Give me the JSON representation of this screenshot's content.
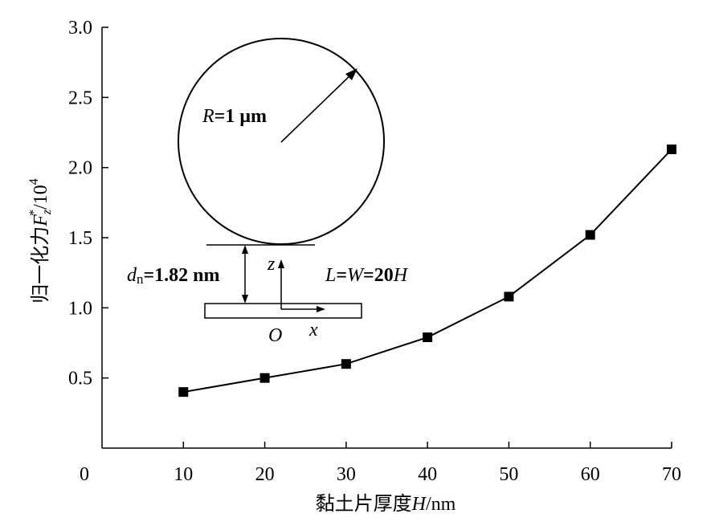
{
  "chart_data": {
    "type": "line",
    "title": "",
    "xlabel": "黏土片厚度H/nm",
    "xlabel_parts": {
      "prefix": "黏土片厚度",
      "var": "H",
      "unit": "/nm"
    },
    "ylabel": "归一化力Fz*/10^4",
    "ylabel_parts": {
      "prefix": "归一化力",
      "var": "F",
      "sub": "z",
      "sup": "*",
      "unit_base": "/10",
      "unit_exp": "4"
    },
    "x": [
      10,
      20,
      30,
      40,
      50,
      60,
      70
    ],
    "series": [
      {
        "values": [
          0.4,
          0.5,
          0.6,
          0.79,
          1.08,
          1.52,
          2.13
        ],
        "marker": "square",
        "color": "#000000"
      }
    ],
    "xlim": [
      0,
      70
    ],
    "ylim": [
      0,
      3.0
    ],
    "xticks": [
      "0",
      "10",
      "20",
      "30",
      "40",
      "50",
      "60",
      "70"
    ],
    "yticks": [
      "0.5",
      "1.0",
      "1.5",
      "2.0",
      "2.5",
      "3.0"
    ],
    "grid": false,
    "inset": {
      "radius_label": {
        "var": "R",
        "text": "=1 μm"
      },
      "gap_label": {
        "var": "d",
        "sub": "n",
        "text": "=1.82 nm"
      },
      "size_label": {
        "var1": "L",
        "eq": "=",
        "var2": "W",
        "text": "=20",
        "var3": "H"
      },
      "axis_z": "z",
      "axis_x": "x",
      "origin": "O"
    }
  }
}
